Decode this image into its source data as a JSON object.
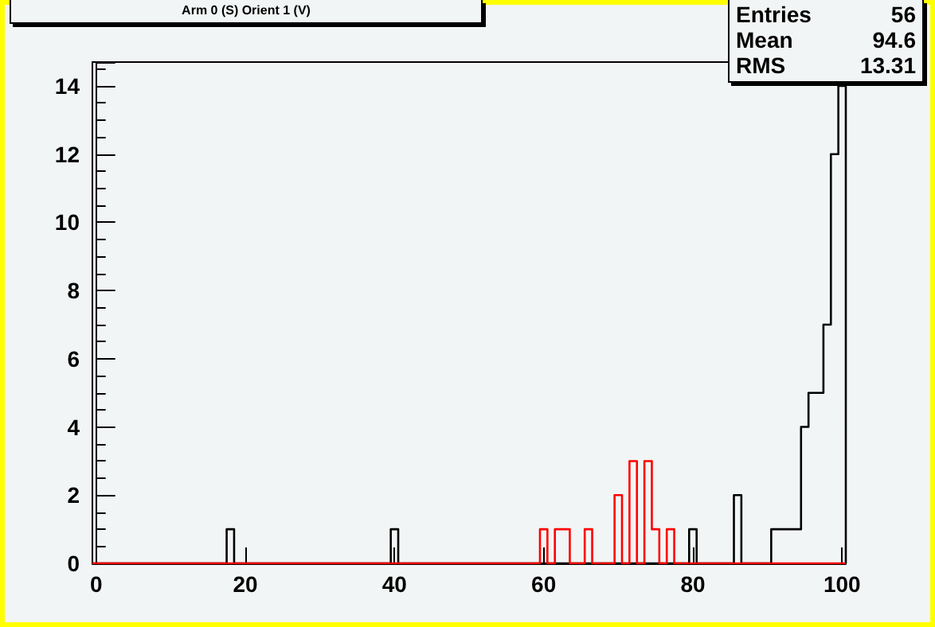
{
  "chart_data": {
    "type": "histogram",
    "title": "Arm 0 (S) Orient 1 (V)",
    "annotations": [
      "Entries 56",
      "Mean 94.6",
      "RMS 13.31"
    ],
    "bins": [
      -0.5,
      0.5,
      1.5,
      2.5,
      3.5,
      4.5,
      5.5,
      6.5,
      7.5,
      8.5,
      9.5,
      10.5,
      11.5,
      12.5,
      13.5,
      14.5,
      15.5,
      16.5,
      17.5,
      18.5,
      19.5,
      20.5,
      21.5,
      22.5,
      23.5,
      24.5,
      25.5,
      26.5,
      27.5,
      28.5,
      29.5,
      30.5,
      31.5,
      32.5,
      33.5,
      34.5,
      35.5,
      36.5,
      37.5,
      38.5,
      39.5,
      40.5,
      41.5,
      42.5,
      43.5,
      44.5,
      45.5,
      46.5,
      47.5,
      48.5,
      49.5,
      50.5,
      51.5,
      52.5,
      53.5,
      54.5,
      55.5,
      56.5,
      57.5,
      58.5,
      59.5,
      60.5,
      61.5,
      62.5,
      63.5,
      64.5,
      65.5,
      66.5,
      67.5,
      68.5,
      69.5,
      70.5,
      71.5,
      72.5,
      73.5,
      74.5,
      75.5,
      76.5,
      77.5,
      78.5,
      79.5,
      80.5,
      81.5,
      82.5,
      83.5,
      84.5,
      85.5,
      86.5,
      87.5,
      88.5,
      89.5,
      90.5,
      91.5,
      92.5,
      93.5,
      94.5,
      95.5,
      96.5,
      97.5,
      98.5,
      99.5,
      100.5
    ],
    "series": [
      {
        "color": "#000000",
        "values": [
          0,
          0,
          0,
          0,
          0,
          0,
          0,
          0,
          0,
          0,
          0,
          0,
          0,
          0,
          0,
          0,
          0,
          0,
          1,
          0,
          0,
          0,
          0,
          0,
          0,
          0,
          0,
          0,
          0,
          0,
          0,
          0,
          0,
          0,
          0,
          0,
          0,
          0,
          0,
          0,
          1,
          0,
          0,
          0,
          0,
          0,
          0,
          0,
          0,
          0,
          0,
          0,
          0,
          0,
          0,
          0,
          0,
          0,
          0,
          0,
          0,
          0,
          0,
          0,
          0,
          0,
          0,
          0,
          0,
          0,
          0,
          0,
          0,
          0,
          0,
          0,
          0,
          0,
          0,
          0,
          1,
          0,
          0,
          0,
          0,
          0,
          2,
          0,
          0,
          0,
          0,
          1,
          1,
          1,
          1,
          4,
          5,
          5,
          7,
          12,
          14
        ]
      },
      {
        "color": "#ff0000",
        "values": [
          0,
          0,
          0,
          0,
          0,
          0,
          0,
          0,
          0,
          0,
          0,
          0,
          0,
          0,
          0,
          0,
          0,
          0,
          0,
          0,
          0,
          0,
          0,
          0,
          0,
          0,
          0,
          0,
          0,
          0,
          0,
          0,
          0,
          0,
          0,
          0,
          0,
          0,
          0,
          0,
          0,
          0,
          0,
          0,
          0,
          0,
          0,
          0,
          0,
          0,
          0,
          0,
          0,
          0,
          0,
          0,
          0,
          0,
          0,
          0,
          1,
          0,
          1,
          1,
          0,
          0,
          1,
          0,
          0,
          0,
          2,
          0,
          3,
          0,
          3,
          1,
          0,
          1,
          0,
          0,
          0,
          0,
          0,
          0,
          0,
          0,
          0,
          0,
          0,
          0,
          0,
          0,
          0,
          0,
          0,
          0,
          0,
          0,
          0,
          0,
          0
        ]
      }
    ],
    "xlim": [
      -0.5,
      100.5
    ],
    "xticks": [
      0,
      20,
      40,
      60,
      80,
      100
    ],
    "ylim": [
      0,
      14.7
    ],
    "yticks": [
      0,
      2,
      4,
      6,
      8,
      10,
      12,
      14
    ],
    "grid": false
  }
}
